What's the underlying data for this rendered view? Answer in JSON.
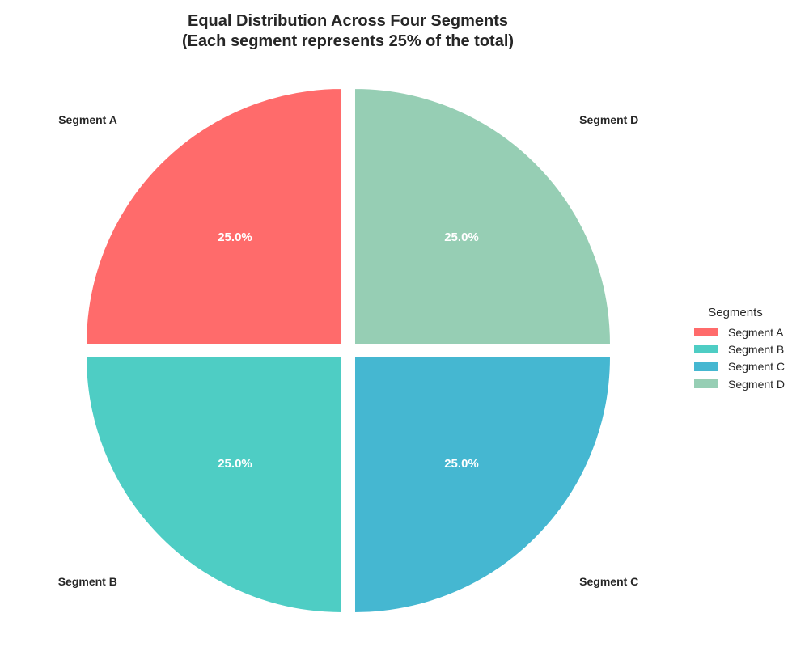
{
  "chart_data": {
    "type": "pie",
    "title": "Equal Distribution Across Four Segments",
    "subtitle": "(Each segment represents 25% of the total)",
    "slices": [
      {
        "label": "Segment A",
        "value": 25,
        "pct_label": "25.0%",
        "color": "#FF6B6B"
      },
      {
        "label": "Segment B",
        "value": 25,
        "pct_label": "25.0%",
        "color": "#4ECDC4"
      },
      {
        "label": "Segment C",
        "value": 25,
        "pct_label": "25.0%",
        "color": "#45B7D1"
      },
      {
        "label": "Segment D",
        "value": 25,
        "pct_label": "25.0%",
        "color": "#96CEB4"
      }
    ],
    "start_angle_deg": 90,
    "direction": "counterclockwise",
    "exploded": true,
    "legend": {
      "title": "Segments",
      "position": "right",
      "entries": [
        "Segment A",
        "Segment B",
        "Segment C",
        "Segment D"
      ]
    }
  }
}
